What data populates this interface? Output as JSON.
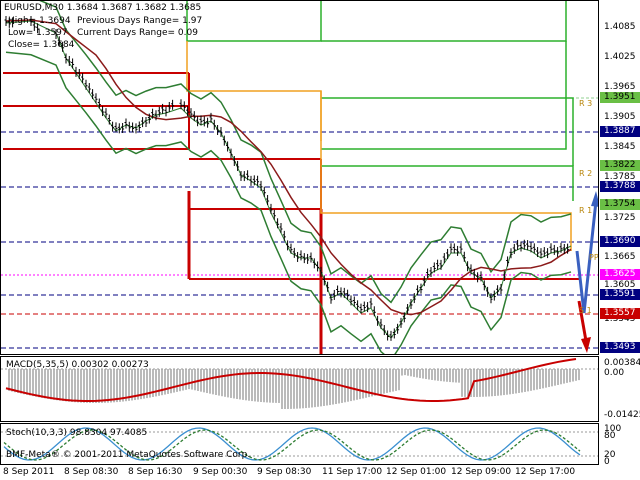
{
  "header": {
    "symbol_line": "EURUSD,M30  1.3684 1.3687 1.3682 1.3685",
    "high": "High= 1.3694",
    "low": "Low= 1.3597",
    "close": "Close= 1.3684",
    "prev_range": "Previous Days Range= 1.97",
    "curr_range": "Current Days Range= 0.09"
  },
  "price_axis": [
    "1.4085",
    "1.4025",
    "1.3965",
    "1.3905",
    "1.3845",
    "1.3785",
    "1.3725",
    "1.3665",
    "1.3605",
    "1.3545"
  ],
  "price_tags": [
    {
      "label": "1.3951",
      "color": "#6abf45"
    },
    {
      "label": "1.3887",
      "color": "#000080"
    },
    {
      "label": "1.3822",
      "color": "#6abf45"
    },
    {
      "label": "1.3788",
      "color": "#000080"
    },
    {
      "label": "1.3754",
      "color": "#6abf45"
    },
    {
      "label": "1.3690",
      "color": "#000080"
    },
    {
      "label": "1.3625",
      "color": "#ff00ff"
    },
    {
      "label": "1.3591",
      "color": "#000080"
    },
    {
      "label": "1.3557",
      "color": "#c80000"
    },
    {
      "label": "1.3493",
      "color": "#000080"
    }
  ],
  "pivot_labels": [
    "R 3",
    "R 2",
    "R 1",
    "PP",
    "S 1"
  ],
  "macd": {
    "label": "MACD(5,35,5) 0.00302 0.00273",
    "axis_top": "0.00384",
    "axis_zero": "0.00",
    "axis_bottom": "-0.01425"
  },
  "stoch": {
    "label": "Stoch(10,3,3) 98.8304 97.4085",
    "axis_top": "100",
    "axis_80": "80",
    "axis_20": "20",
    "axis_bottom": "0"
  },
  "watermark": "BMF-Meta® © 2001-2011 MetaQuotes Software Corp.",
  "time_axis": [
    "8 Sep 2011",
    "8 Sep 08:30",
    "8 Sep 16:30",
    "9 Sep 00:30",
    "9 Sep 08:30",
    "11 Sep 17:00",
    "12 Sep 01:00",
    "12 Sep 09:00",
    "12 Sep 17:00"
  ],
  "colors": {
    "green": "#2bb02b",
    "orange": "#f0a020",
    "red": "#c80000",
    "navy": "#000080",
    "band": "#2e7d32",
    "ma": "#8b1a1a"
  }
}
